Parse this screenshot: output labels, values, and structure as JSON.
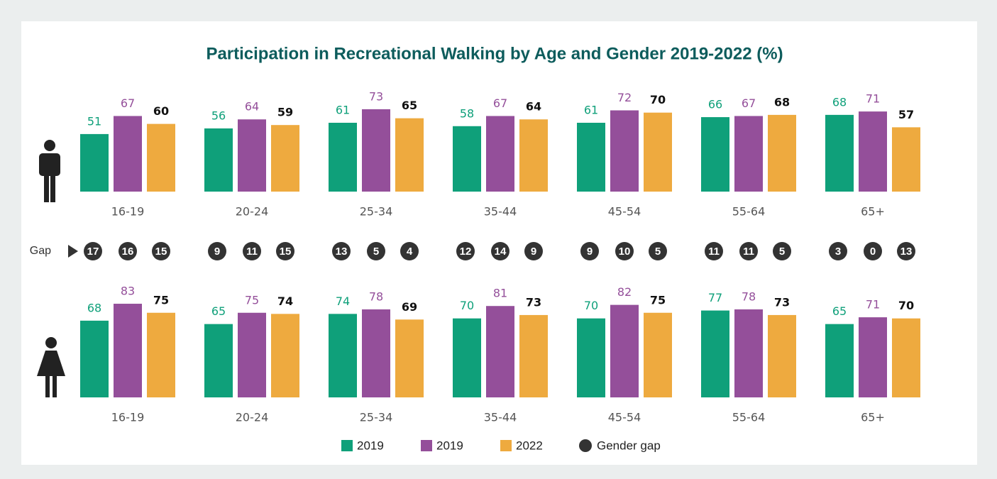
{
  "title": "Participation in Recreational Walking by Age and Gender 2019-2022 (%)",
  "chart_data": [
    {
      "type": "bar",
      "categories": [
        "16-19",
        "20-24",
        "25-34",
        "35-44",
        "45-54",
        "55-64",
        "65+"
      ],
      "series": [
        {
          "name": "2019",
          "color": "#0fa07a",
          "values": [
            51,
            56,
            61,
            58,
            61,
            66,
            68
          ]
        },
        {
          "name": "2019",
          "color": "#944f9a",
          "values": [
            67,
            64,
            73,
            67,
            72,
            67,
            71
          ]
        },
        {
          "name": "2022",
          "color": "#eeaa3f",
          "values": [
            60,
            59,
            65,
            64,
            70,
            68,
            57
          ]
        }
      ]
    },
    {
      "type": "bar",
      "categories": [
        "16-19",
        "20-24",
        "25-34",
        "35-44",
        "45-54",
        "55-64",
        "65+"
      ],
      "series": [
        {
          "name": "2019",
          "color": "#0fa07a",
          "values": [
            68,
            65,
            74,
            70,
            70,
            77,
            65
          ]
        },
        {
          "name": "2019",
          "color": "#944f9a",
          "values": [
            83,
            75,
            78,
            81,
            82,
            78,
            71
          ]
        },
        {
          "name": "2022",
          "color": "#eeaa3f",
          "values": [
            75,
            74,
            69,
            73,
            75,
            73,
            70
          ]
        }
      ]
    }
  ],
  "gap": {
    "label": "Gap",
    "legend": "Gender gap",
    "color": "#333333",
    "values": [
      [
        17,
        16,
        15
      ],
      [
        9,
        11,
        15
      ],
      [
        13,
        5,
        4
      ],
      [
        12,
        14,
        9
      ],
      [
        9,
        10,
        5
      ],
      [
        11,
        11,
        5
      ],
      [
        3,
        0,
        13
      ]
    ]
  }
}
